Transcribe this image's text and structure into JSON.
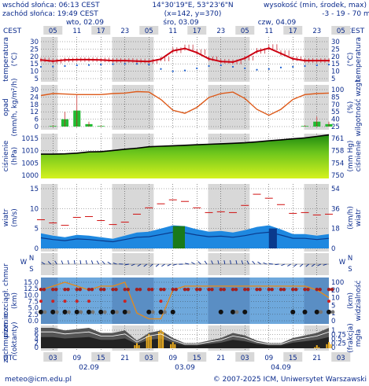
{
  "header": {
    "sunrise": "wschód słońca: 06:13 CEST",
    "sunset": "zachód słońca: 19:49 CEST",
    "coords": "14°30'19\"E, 53°23'6\"N",
    "grid": "(x=142,  y=370)",
    "elev_label": "wysokość (min, środek, max)",
    "elev_values": "-3 - 19 - 70 m"
  },
  "top_axis": {
    "tz": "CEST",
    "day_labels": [
      "wto, 02.09",
      "śro, 03.09",
      "czw, 04.09"
    ],
    "hours": [
      "05",
      "11",
      "17",
      "23",
      "05",
      "11",
      "17",
      "23",
      "05",
      "11",
      "17",
      "23",
      "05"
    ]
  },
  "bottom_axis": {
    "tz": "UTC",
    "hours": [
      "03",
      "09",
      "15",
      "21",
      "03",
      "09",
      "15",
      "21",
      "03",
      "09",
      "15",
      "21",
      "03"
    ],
    "dates": [
      "02.09",
      "03.09",
      "04.09"
    ]
  },
  "footer": {
    "email": "meteo@icm.edu.pl",
    "copyright": "© 2007-2025 ICM, Uniwersytet Warszawski"
  },
  "panels": {
    "temperature": {
      "left": "temperatura",
      "left_unit": "(°C)",
      "right": "temperatura",
      "right_unit": "(°C)",
      "ticks": [
        "30",
        "25",
        "20",
        "15",
        "10",
        "5"
      ]
    },
    "precip": {
      "left": "opad",
      "left_unit": "(mm/h, kg/m²/h)",
      "right": "wilgotność wzgl.",
      "right_unit": "(%)",
      "ticks_left": [
        "30",
        "24",
        "18",
        "12",
        "6",
        "0"
      ],
      "ticks_right": [
        "100",
        "85",
        "70",
        "55",
        "40",
        "25"
      ]
    },
    "pressure": {
      "left": "ciśnienie",
      "left_unit": "(hPa)",
      "right": "ciśnienie",
      "right_unit": "(mm Hg)",
      "ticks_left": [
        "1015",
        "1010",
        "1005",
        "1000"
      ],
      "ticks_right": [
        "761",
        "758",
        "754",
        "750"
      ]
    },
    "wind": {
      "left": "wiatr",
      "left_unit": "(m/s)",
      "right": "wiatr",
      "right_unit": "(km/h)",
      "ticks_left": [
        "15",
        "10",
        "5",
        "0"
      ],
      "ticks_right": [
        "54",
        "36",
        "18",
        "0"
      ]
    },
    "winddir": {
      "left": "W",
      "left2": "N",
      "left3": "S",
      "right": "W",
      "right2": "N",
      "right3": "S"
    },
    "clouds": {
      "left": "pion. rozciągł. chmur",
      "left_unit": "(km)",
      "right": "widzialność",
      "right_unit": "(km)",
      "ticks_left": [
        "15.0",
        "12.5",
        "10.0",
        "7.5",
        "5.0",
        "2.5",
        "0.0"
      ],
      "ticks_right": [
        "100",
        "20",
        "10",
        "5",
        "1",
        "0"
      ]
    },
    "cover": {
      "left": "zachmurzenie",
      "left_unit": "(oktanty)",
      "right": "mgła",
      "right_unit": "(frakcja)",
      "ticks_left": [
        "8",
        "6",
        "4",
        "2",
        "0"
      ],
      "ticks_right": [
        "1",
        "0.75",
        "0.5",
        "0.25",
        "0"
      ]
    }
  },
  "colors": {
    "line_red": "#cc0011",
    "orange": "#dd5a1a",
    "green": "#22bb33",
    "blue": "#1c5fd0",
    "navy": "#0a2a8c",
    "night": "#d8d8d8"
  },
  "chart_data": {
    "type": "line",
    "x_hours_utc": [
      0,
      3,
      6,
      9,
      12,
      15,
      18,
      21,
      24,
      27,
      30,
      33,
      36,
      39,
      42,
      45,
      48,
      51,
      54,
      57,
      60,
      63,
      66,
      69,
      72
    ],
    "x_label_note": "",
    "temperature": [
      17.6,
      16.8,
      17.6,
      17.8,
      17.8,
      17.6,
      17.2,
      17.2,
      16.8,
      16.6,
      18.2,
      23.8,
      25.4,
      22.6,
      18.4,
      16.6,
      16.2,
      18.8,
      23.4,
      25.6,
      22.0,
      18.4,
      17.2,
      17.2,
      17.2
    ],
    "dew_point": [
      13.0,
      13.2,
      13.5,
      14.0,
      14.2,
      14.5,
      14.8,
      15.0,
      15.0,
      14.5,
      11.5,
      10.0,
      10.5,
      12.0,
      13.5,
      14.0,
      13.0,
      12.0,
      11.0,
      11.5,
      12.5,
      13.0,
      13.5,
      14.0,
      14.5
    ],
    "humidity_pct": [
      88,
      92,
      91,
      90,
      90,
      90,
      92,
      93,
      96,
      95,
      80,
      58,
      52,
      64,
      84,
      92,
      95,
      82,
      60,
      48,
      60,
      80,
      90,
      92,
      93
    ],
    "pressure_hpa": [
      1008.6,
      1008.6,
      1008.7,
      1009.0,
      1009.5,
      1009.6,
      1010.1,
      1010.6,
      1011.0,
      1011.6,
      1011.8,
      1012.0,
      1012.2,
      1012.4,
      1012.6,
      1012.8,
      1013.0,
      1013.2,
      1013.6,
      1014.0,
      1014.4,
      1014.8,
      1015.2,
      1015.8,
      1016.4
    ],
    "wind_ms": [
      3.8,
      3.2,
      2.8,
      3.4,
      3.2,
      2.8,
      2.4,
      3.2,
      4.0,
      4.2,
      5.0,
      5.8,
      5.6,
      4.8,
      4.2,
      4.4,
      4.0,
      4.6,
      5.4,
      5.8,
      4.8,
      3.6,
      3.6,
      3.2,
      3.6
    ],
    "gust_ms": [
      7.2,
      6.4,
      5.8,
      7.8,
      8.0,
      7.0,
      6.0,
      6.6,
      8.6,
      10.2,
      11.2,
      12.2,
      11.8,
      10.2,
      9.0,
      9.2,
      9.0,
      10.8,
      13.6,
      12.6,
      11.0,
      8.8,
      9.0,
      8.4,
      8.6
    ],
    "precip_mmh": [
      0,
      0.5,
      6,
      13,
      2,
      0.5,
      0,
      0,
      0,
      0,
      0,
      0,
      0,
      0,
      0,
      0,
      0,
      0,
      0,
      0,
      0,
      0,
      0.5,
      4,
      2
    ],
    "cloud_octas": [
      8,
      8,
      7,
      7.5,
      8,
      6,
      6,
      7,
      3,
      6,
      7,
      4,
      2,
      2,
      3,
      4,
      6,
      5,
      3,
      2,
      2,
      4,
      5,
      6,
      8
    ],
    "fog_fraction": [
      0,
      0,
      0,
      0,
      0,
      0,
      0,
      0,
      0.25,
      0.7,
      0.9,
      0.3,
      0,
      0,
      0,
      0,
      0,
      0,
      0,
      0,
      0,
      0,
      0,
      0.15,
      0.3
    ],
    "visibility_km": [
      8,
      9,
      10,
      9,
      8,
      9,
      9,
      10,
      2,
      0.5,
      0.5,
      8,
      9,
      9,
      9,
      9,
      9,
      9,
      9,
      9,
      9,
      9,
      9,
      8,
      6
    ]
  }
}
